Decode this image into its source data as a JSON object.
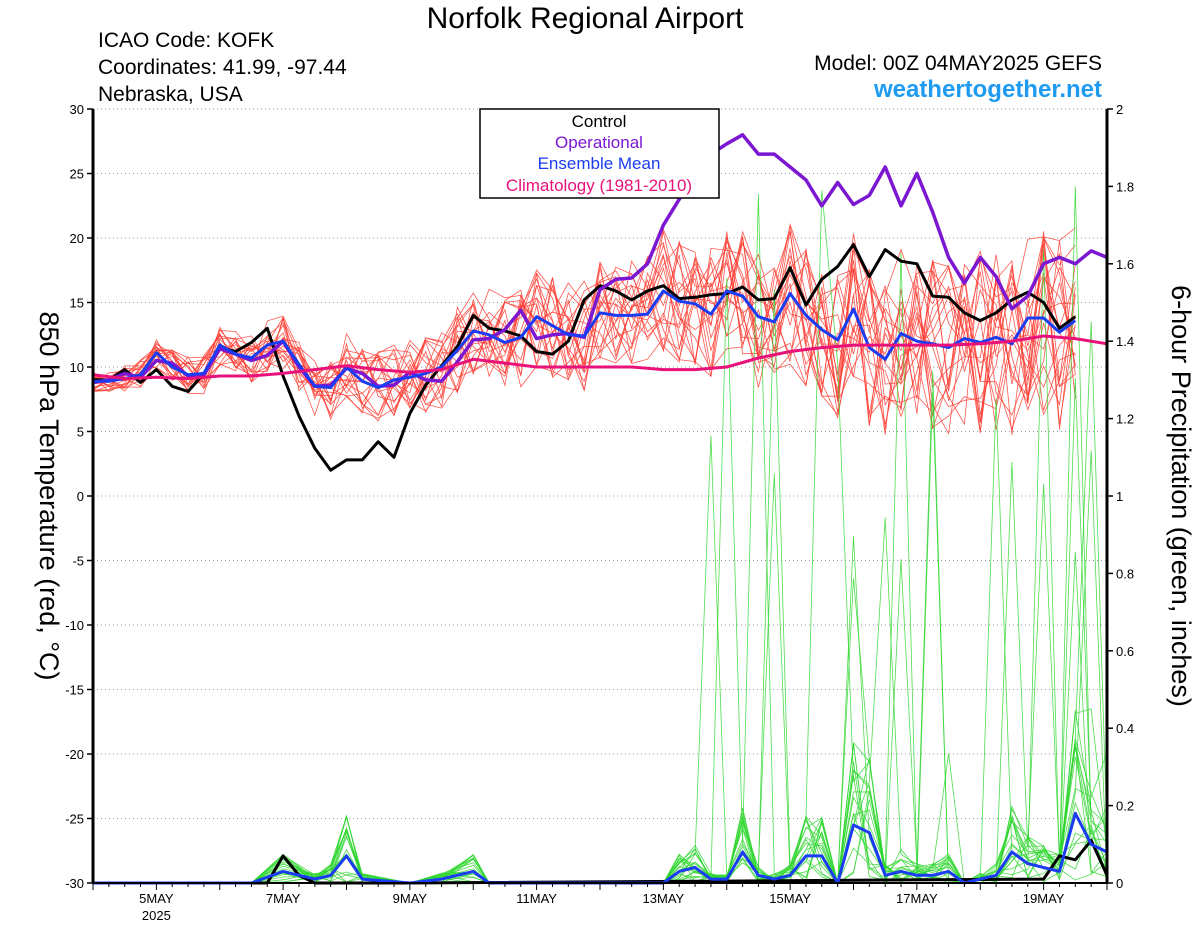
{
  "header": {
    "title": "Norfolk Regional Airport",
    "icao": "ICAO Code: KOFK",
    "coords": "Coordinates: 41.99, -97.44",
    "region": "Nebraska, USA",
    "model": "Model: 00Z 04MAY2025 GEFS",
    "site": "weathertogether.net"
  },
  "colors": {
    "control": "#000000",
    "operational": "#7b16d1",
    "ensemble_mean": "#1a3cf2",
    "climatology": "#e8127a",
    "members_temp": "#ff3b30",
    "members_precip": "#2fd62f",
    "site": "#1e9bf0"
  },
  "chart_data": {
    "type": "line",
    "ylabel": "850 hPa Temperature (red, °C)",
    "y2label": "6-hour Precipitation (green, inches)",
    "ylim": [
      -30,
      30
    ],
    "y2lim": [
      0,
      2
    ],
    "yticks": [
      "30",
      "25",
      "20",
      "15",
      "10",
      "5",
      "0",
      "-5",
      "-10",
      "-15",
      "-20",
      "-25",
      "-30"
    ],
    "y2ticks": [
      "2",
      "1.8",
      "1.6",
      "1.4",
      "1.2",
      "1",
      "0.8",
      "0.6",
      "0.4",
      "0.2",
      "0"
    ],
    "x_start_day": 4,
    "x_end_day": 20,
    "xtick_labels": [
      {
        "day": 5,
        "label": "5MAY",
        "sub": "2025"
      },
      {
        "day": 7,
        "label": "7MAY"
      },
      {
        "day": 9,
        "label": "9MAY"
      },
      {
        "day": 11,
        "label": "11MAY"
      },
      {
        "day": 13,
        "label": "13MAY"
      },
      {
        "day": 15,
        "label": "15MAY"
      },
      {
        "day": 17,
        "label": "17MAY"
      },
      {
        "day": 19,
        "label": "19MAY"
      }
    ],
    "legend": [
      "Control",
      "Operational",
      "Ensemble Mean",
      "Climatology (1981-2010)"
    ],
    "legend_position": "top-center",
    "series": [
      {
        "name": "Control",
        "type": "temperature",
        "x": [
          4,
          4.25,
          4.5,
          4.75,
          5,
          5.25,
          5.5,
          5.75,
          6,
          6.25,
          6.5,
          6.75,
          7,
          7.25,
          7.5,
          7.75,
          8,
          8.25,
          8.5,
          8.75,
          9,
          9.25,
          9.5,
          9.75,
          10,
          10.25,
          10.5,
          10.75,
          11,
          11.25,
          11.5,
          11.75,
          12,
          12.25,
          12.5,
          12.75,
          13,
          13.25,
          13.5,
          13.75,
          14,
          14.25,
          14.5,
          14.75,
          15,
          15.25,
          15.5,
          15.75,
          16,
          16.25,
          16.5,
          16.75,
          17,
          17.25,
          17.5,
          17.75,
          18,
          18.25,
          18.5,
          18.75,
          19,
          19.25,
          19.5,
          19.75,
          20
        ],
        "y": [
          9,
          9,
          9.8,
          8.8,
          9.8,
          8.5,
          8.1,
          9.5,
          11.5,
          11.2,
          11.9,
          13,
          9.3,
          6.2,
          3.7,
          2,
          2.8,
          2.8,
          4.2,
          3,
          6.4,
          8.6,
          10.1,
          11.6,
          14,
          13,
          12.8,
          12.4,
          11.2,
          11,
          12,
          15.2,
          16.3,
          15.9,
          15.2,
          15.9,
          16.3,
          15.3,
          15.4,
          15.6,
          15.7,
          16.2,
          15.2,
          15.3,
          17.7,
          14.8,
          16.8,
          17.8,
          19.5,
          17,
          19.1,
          18.2,
          18,
          15.5,
          15.4,
          14.2,
          13.6,
          14.2,
          15.2,
          15.8,
          15,
          13,
          13.9,
          null,
          null
        ]
      },
      {
        "name": "Operational",
        "type": "temperature",
        "x": [
          4,
          4.25,
          4.5,
          4.75,
          5,
          5.25,
          5.5,
          5.75,
          6,
          6.25,
          6.5,
          6.75,
          7,
          7.25,
          7.5,
          7.75,
          8,
          8.25,
          8.5,
          8.75,
          9,
          9.25,
          9.5,
          9.75,
          10,
          10.25,
          10.5,
          10.75,
          11,
          11.25,
          11.5,
          11.75,
          12,
          12.25,
          12.5,
          12.75,
          13,
          13.25,
          13.5,
          13.75,
          14,
          14.25,
          14.5,
          14.75,
          15,
          15.25,
          15.5,
          15.75,
          16,
          16.25,
          16.5,
          16.75,
          17,
          17.25,
          17.5,
          17.75,
          18,
          18.25,
          18.5,
          18.75,
          19,
          19.25,
          19.5,
          19.75,
          20
        ],
        "y": [
          8.8,
          9,
          9.5,
          9.2,
          10.5,
          10.3,
          9.3,
          9.4,
          11.4,
          11,
          10.5,
          10.9,
          12,
          10,
          8.5,
          8.6,
          9.9,
          9.5,
          8.5,
          8.6,
          9.6,
          9,
          8.9,
          10.4,
          12.1,
          12.2,
          12.9,
          14.4,
          12.2,
          12.5,
          12.6,
          12.3,
          16,
          16.8,
          16.9,
          18,
          21,
          23,
          25,
          26.5,
          27.3,
          28,
          26.5,
          26.5,
          25.5,
          24.5,
          22.5,
          24.3,
          22.6,
          23.3,
          25.5,
          22.5,
          25,
          22,
          18.5,
          16.5,
          18.5,
          17,
          14.5,
          15.5,
          18,
          18.5,
          18,
          19,
          18.5
        ]
      },
      {
        "name": "Ensemble Mean",
        "type": "temperature",
        "x": [
          4,
          4.25,
          4.5,
          4.75,
          5,
          5.25,
          5.5,
          5.75,
          6,
          6.25,
          6.5,
          6.75,
          7,
          7.25,
          7.5,
          7.75,
          8,
          8.25,
          8.5,
          8.75,
          9,
          9.25,
          9.5,
          9.75,
          10,
          10.25,
          10.5,
          10.75,
          11,
          11.25,
          11.5,
          11.75,
          12,
          12.25,
          12.5,
          12.75,
          13,
          13.25,
          13.5,
          13.75,
          14,
          14.25,
          14.5,
          14.75,
          15,
          15.25,
          15.5,
          15.75,
          16,
          16.25,
          16.5,
          16.75,
          17,
          17.25,
          17.5,
          17.75,
          18,
          18.25,
          18.5,
          18.75,
          19,
          19.25,
          19.5,
          19.75,
          20
        ],
        "y": [
          8.9,
          8.9,
          9.1,
          9.4,
          11.1,
          10,
          9.4,
          9.5,
          11.7,
          11,
          10.7,
          11.7,
          12,
          10.2,
          8.5,
          8.4,
          10,
          8.9,
          8.4,
          9,
          9.2,
          9.5,
          10,
          11.3,
          12.8,
          12.5,
          11.9,
          12.3,
          13.9,
          13.2,
          12.5,
          12.4,
          14.2,
          14,
          14,
          14.1,
          15.9,
          15.1,
          14.9,
          14.1,
          15.9,
          15.5,
          13.9,
          13.5,
          15.7,
          14,
          12.9,
          12.1,
          14.5,
          11.5,
          10.6,
          12.6,
          12,
          11.8,
          11.5,
          12.2,
          11.9,
          12.3,
          11.8,
          13.8,
          13.8,
          12.7,
          13.6,
          null,
          null
        ]
      },
      {
        "name": "Climatology (1981-2010)",
        "type": "temperature",
        "x": [
          4,
          4.5,
          5,
          5.5,
          6,
          6.5,
          7,
          7.5,
          8,
          8.5,
          9,
          9.5,
          10,
          10.5,
          11,
          11.5,
          12,
          12.5,
          13,
          13.5,
          14,
          14.5,
          15,
          15.5,
          16,
          16.5,
          17,
          17.5,
          18,
          18.5,
          19,
          19.5,
          20
        ],
        "y": [
          9.4,
          9.1,
          9.2,
          9.1,
          9.3,
          9.3,
          9.5,
          9.8,
          10.1,
          9.8,
          9.6,
          9.8,
          10.6,
          10.3,
          10,
          10,
          10,
          10,
          9.8,
          9.8,
          10,
          10.7,
          11.2,
          11.5,
          11.7,
          11.7,
          11.7,
          11.7,
          11.8,
          12,
          12.4,
          12.2,
          11.8
        ]
      },
      {
        "name": "Control",
        "type": "precipitation",
        "x": [
          4,
          6.75,
          7,
          7.25,
          7.5,
          8,
          8.5,
          9,
          19,
          19.25,
          19.5,
          19.75,
          20
        ],
        "y": [
          0,
          0,
          0.07,
          0.02,
          0,
          0,
          0,
          0,
          0.01,
          0.07,
          0.06,
          0.11,
          0.02
        ]
      },
      {
        "name": "Ensemble Mean",
        "type": "precipitation",
        "x": [
          4,
          6.5,
          7,
          7.5,
          7.75,
          8,
          8.25,
          9,
          9.5,
          10,
          10.25,
          10.5,
          12.5,
          13,
          13.25,
          13.5,
          13.75,
          14,
          14.25,
          14.5,
          14.75,
          15,
          15.25,
          15.5,
          15.75,
          16,
          16.25,
          16.5,
          16.75,
          17,
          17.25,
          17.5,
          17.75,
          18,
          18.25,
          18.5,
          18.75,
          19,
          19.25,
          19.5,
          19.75,
          20
        ],
        "y": [
          0,
          0,
          0.03,
          0.01,
          0.02,
          0.07,
          0.01,
          0,
          0.01,
          0.03,
          0,
          0,
          0,
          0,
          0.03,
          0.04,
          0.01,
          0.01,
          0.08,
          0.02,
          0.01,
          0.02,
          0.07,
          0.07,
          0,
          0.15,
          0.13,
          0.02,
          0.03,
          0.02,
          0.02,
          0.03,
          0,
          0.01,
          0.02,
          0.08,
          0.05,
          0.04,
          0.03,
          0.18,
          0.1,
          0.08
        ]
      }
    ],
    "grid": true
  }
}
